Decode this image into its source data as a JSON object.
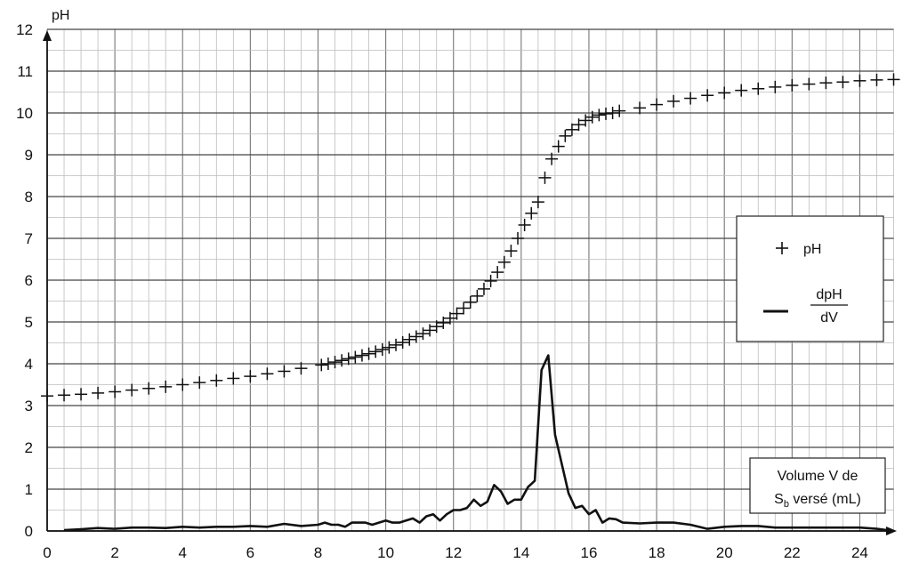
{
  "chart_data": {
    "type": "line",
    "ylabel": "pH",
    "xlabel_line1": "Volume V de",
    "xlabel_line2_pre": "S",
    "xlabel_line2_sub": "b",
    "xlabel_line2_post": " versé (mL)",
    "xlim": [
      0,
      25
    ],
    "ylim": [
      0,
      12
    ],
    "xticks": [
      0,
      2,
      4,
      6,
      8,
      10,
      12,
      14,
      16,
      18,
      20,
      22,
      24
    ],
    "yticks": [
      0,
      1,
      2,
      3,
      4,
      5,
      6,
      7,
      8,
      9,
      10,
      11,
      12
    ],
    "grid": true,
    "legend": {
      "position": "right",
      "entries": [
        {
          "marker": "plus",
          "label": "pH"
        },
        {
          "marker": "line",
          "label_num": "dpH",
          "label_den": "dV"
        }
      ]
    },
    "series": [
      {
        "name": "pH",
        "style": "plus",
        "x": [
          0,
          0.5,
          1,
          1.5,
          2,
          2.5,
          3,
          3.5,
          4,
          4.5,
          5,
          5.5,
          6,
          6.5,
          7,
          7.5,
          8.1,
          8.3,
          8.5,
          8.7,
          8.9,
          9.1,
          9.3,
          9.5,
          9.7,
          9.9,
          10.1,
          10.3,
          10.5,
          10.7,
          10.9,
          11.1,
          11.3,
          11.5,
          11.7,
          11.9,
          12.1,
          12.3,
          12.5,
          12.7,
          12.9,
          13.1,
          13.3,
          13.5,
          13.7,
          13.9,
          14.1,
          14.3,
          14.5,
          14.7,
          14.9,
          15.1,
          15.3,
          15.5,
          15.7,
          15.9,
          16.1,
          16.3,
          16.5,
          16.7,
          16.9,
          17.5,
          18,
          18.5,
          19,
          19.5,
          20,
          20.5,
          21,
          21.5,
          22,
          22.5,
          23,
          23.5,
          24,
          24.5,
          25
        ],
        "y": [
          3.23,
          3.25,
          3.27,
          3.3,
          3.33,
          3.37,
          3.41,
          3.45,
          3.5,
          3.55,
          3.6,
          3.65,
          3.7,
          3.76,
          3.82,
          3.89,
          3.97,
          4.0,
          4.04,
          4.08,
          4.12,
          4.16,
          4.2,
          4.24,
          4.29,
          4.34,
          4.39,
          4.45,
          4.51,
          4.58,
          4.65,
          4.72,
          4.8,
          4.89,
          4.98,
          5.09,
          5.2,
          5.33,
          5.47,
          5.62,
          5.79,
          5.98,
          6.19,
          6.43,
          6.7,
          7.0,
          7.32,
          7.6,
          7.87,
          8.45,
          8.9,
          9.2,
          9.45,
          9.6,
          9.72,
          9.82,
          9.9,
          9.95,
          9.98,
          10.0,
          10.05,
          10.12,
          10.2,
          10.28,
          10.35,
          10.42,
          10.48,
          10.54,
          10.58,
          10.62,
          10.66,
          10.69,
          10.72,
          10.74,
          10.77,
          10.79,
          10.8
        ]
      },
      {
        "name": "dpH/dV",
        "style": "line",
        "x": [
          0.5,
          1,
          1.5,
          2,
          2.5,
          3,
          3.5,
          4,
          4.5,
          5,
          5.5,
          6,
          6.5,
          7,
          7.5,
          8,
          8.2,
          8.4,
          8.6,
          8.8,
          9,
          9.2,
          9.4,
          9.6,
          9.8,
          10,
          10.2,
          10.4,
          10.6,
          10.8,
          11,
          11.2,
          11.4,
          11.6,
          11.8,
          12,
          12.2,
          12.4,
          12.6,
          12.8,
          13,
          13.2,
          13.4,
          13.6,
          13.8,
          14,
          14.2,
          14.4,
          14.6,
          14.8,
          15,
          15.2,
          15.4,
          15.6,
          15.8,
          16,
          16.2,
          16.4,
          16.6,
          16.8,
          17,
          17.5,
          18,
          18.5,
          19,
          19.5,
          20,
          20.5,
          21,
          21.5,
          22,
          22.5,
          23,
          23.5,
          24,
          24.5,
          25
        ],
        "y": [
          0.02,
          0.04,
          0.07,
          0.05,
          0.08,
          0.08,
          0.07,
          0.1,
          0.08,
          0.1,
          0.1,
          0.12,
          0.1,
          0.17,
          0.12,
          0.15,
          0.2,
          0.15,
          0.15,
          0.1,
          0.2,
          0.2,
          0.2,
          0.15,
          0.2,
          0.25,
          0.2,
          0.2,
          0.25,
          0.3,
          0.2,
          0.35,
          0.4,
          0.25,
          0.4,
          0.5,
          0.5,
          0.55,
          0.75,
          0.6,
          0.7,
          1.1,
          0.95,
          0.65,
          0.75,
          0.75,
          1.05,
          1.2,
          3.85,
          4.2,
          2.3,
          1.6,
          0.9,
          0.55,
          0.6,
          0.4,
          0.5,
          0.2,
          0.3,
          0.28,
          0.2,
          0.18,
          0.2,
          0.2,
          0.15,
          0.05,
          0.1,
          0.12,
          0.12,
          0.08,
          0.08,
          0.08,
          0.08,
          0.08,
          0.08,
          0.05,
          0.0
        ]
      }
    ]
  }
}
